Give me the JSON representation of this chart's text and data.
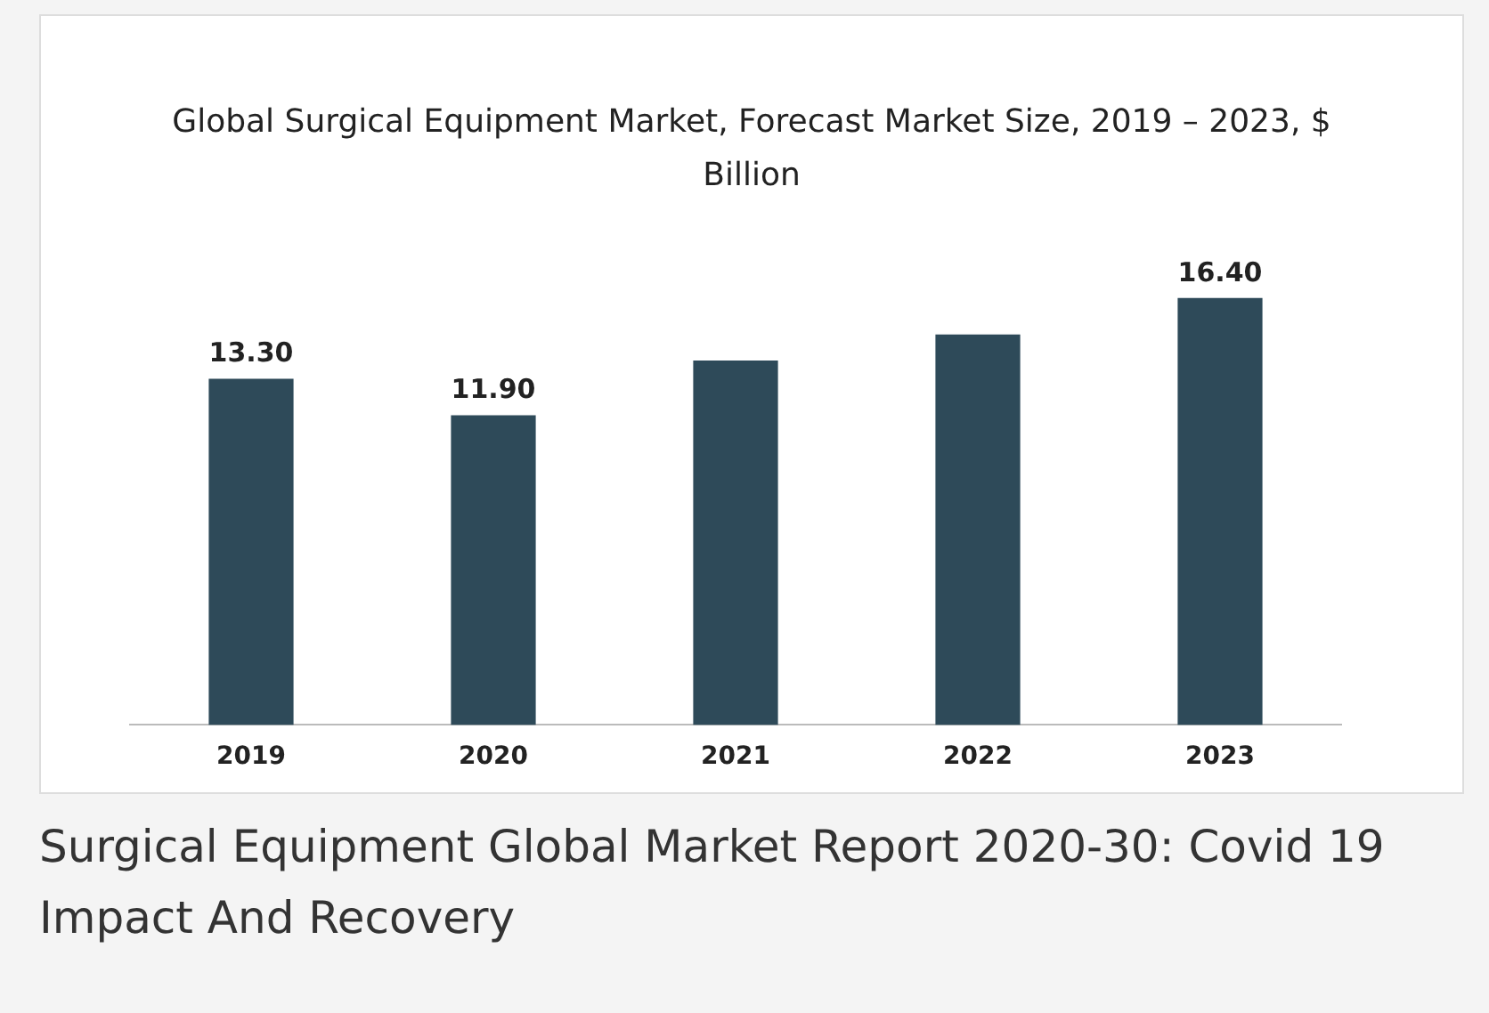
{
  "chart_data": {
    "type": "bar",
    "title": "Global Surgical Equipment Market, Forecast Market Size, 2019 – 2023, $ Billion",
    "categories": [
      "2019",
      "2020",
      "2021",
      "2022",
      "2023"
    ],
    "values": [
      13.3,
      11.9,
      14.0,
      15.0,
      16.4
    ],
    "value_labels": [
      "13.30",
      "11.90",
      null,
      null,
      "16.40"
    ],
    "color": "#2e4a59",
    "grid": false,
    "legend": false,
    "annotations": [
      "Surgical Equipment Global Market Report 2020-30: Covid 19 Impact And Recovery"
    ]
  }
}
